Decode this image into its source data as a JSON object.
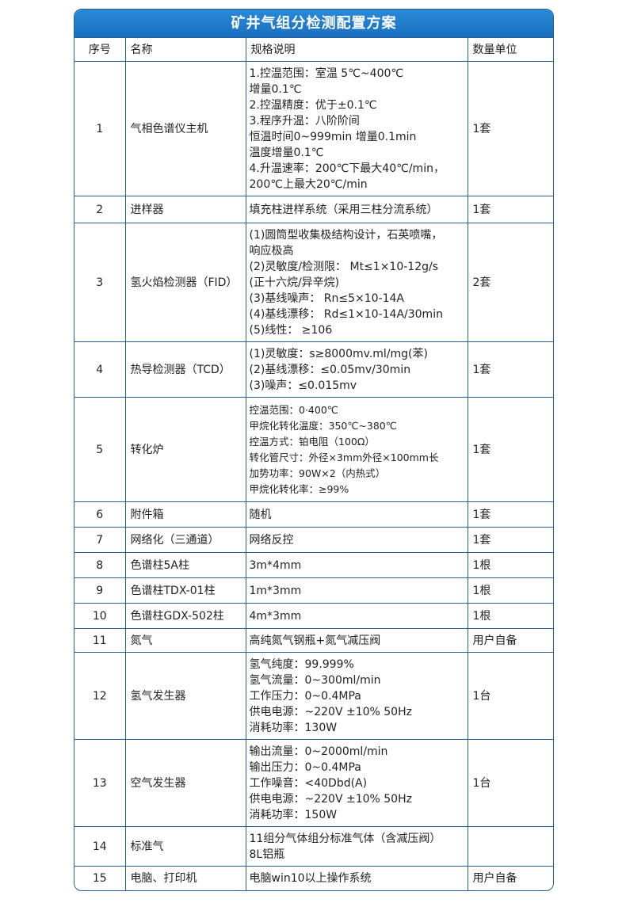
{
  "title": "矿井气组分检测配置方案",
  "headers": [
    "序号",
    "名称",
    "规格说明",
    "数量单位"
  ],
  "rows": [
    {
      "no": "1",
      "name": "气相色谱仪主机",
      "spec": [
        "1.控温范围：室温 5℃~400℃",
        "增量0.1℃",
        "2.控温精度：优于±0.1℃",
        "3.程序升温：八阶阶间",
        "恒温时间0~999min 增量0.1min",
        "温度增量0.1℃",
        "4.升温速率：200℃下最大40℃/min，",
        "200℃上最大20℃/min"
      ],
      "qty": "1套"
    },
    {
      "no": "2",
      "name": "进样器",
      "spec": [
        "填充柱进样系统（采用三柱分流系统）"
      ],
      "qty": "1套"
    },
    {
      "no": "3",
      "name": "氢火焰检测器（FID）",
      "spec": [
        "(1)圆筒型收集极结构设计，石英喷嘴，",
        "响应极高",
        "(2)灵敏度/检测限： Mt≤1×10-12g/s",
        "(正十六烷/异辛烷)",
        "(3)基线噪声： Rn≤5×10-14A",
        "(4)基线漂移： Rd≤1×10-14A/30min",
        "(5)线性： ≥106"
      ],
      "qty": "2套"
    },
    {
      "no": "4",
      "name": "热导检测器（TCD）",
      "spec": [
        "(1)灵敏度：s≥8000mv.ml/mg(苯)",
        "(2)基线漂移：≤0.05mv/30min",
        "(3)噪声：≤0.015mv"
      ],
      "qty": "1套"
    },
    {
      "no": "5",
      "name": "转化炉",
      "spec": [
        "控温范围：0·400℃",
        "甲烷化转化温度：350℃~380℃",
        "控温方式：铂电阻（100Ω）",
        "转化管尺寸：外径×3mm外径×100mm长",
        "加势功率：90W×2（内热式）",
        "甲烷化转化率：≥99%"
      ],
      "qty": "1套"
    },
    {
      "no": "6",
      "name": "附件箱",
      "spec": [
        "随机"
      ],
      "qty": "1套"
    },
    {
      "no": "7",
      "name": "网络化（三通道）",
      "spec": [
        "网络反控"
      ],
      "qty": "1套"
    },
    {
      "no": "8",
      "name": "色谱柱5A柱",
      "spec": [
        "3m*4mm"
      ],
      "qty": "1根"
    },
    {
      "no": "9",
      "name": "色谱柱TDX-01柱",
      "spec": [
        "1m*3mm"
      ],
      "qty": "1根"
    },
    {
      "no": "10",
      "name": "色谱柱GDX-502柱",
      "spec": [
        "4m*3mm"
      ],
      "qty": "1根"
    },
    {
      "no": "11",
      "name": "氮气",
      "spec": [
        "高纯氮气钢瓶+氮气减压阀"
      ],
      "qty": "用户自备"
    },
    {
      "no": "12",
      "name": "氢气发生器",
      "spec": [
        "氢气纯度：99.999%",
        "氢气流量：0~300ml/min",
        "工作压力：0~0.4MPa",
        "供电电源：~220V ±10% 50Hz",
        "消耗功率：130W"
      ],
      "qty": "1台"
    },
    {
      "no": "13",
      "name": "空气发生器",
      "spec": [
        "输出流量：0~2000ml/min",
        "输出压力：0~0.4MPa",
        "工作噪音：<40Dbd(A)",
        "供电电源：~220V ±10% 50Hz",
        "消耗功率：150W"
      ],
      "qty": "1台"
    },
    {
      "no": "14",
      "name": "标准气",
      "spec": [
        "11组分气体组分标准气体（含减压阀）",
        "8L铝瓶"
      ],
      "qty": ""
    },
    {
      "no": "15",
      "name": "电脑、打印机",
      "spec": [
        "电脑win10以上操作系统"
      ],
      "qty": "用户自备"
    }
  ]
}
